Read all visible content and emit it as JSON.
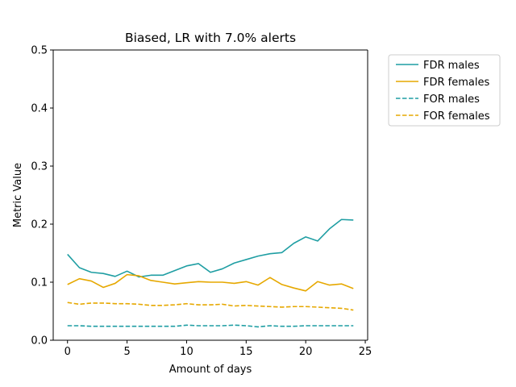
{
  "chart_data": {
    "type": "line",
    "title": "Biased, LR with 7.0% alerts",
    "xlabel": "Amount of days",
    "ylabel": "Metric Value",
    "xlim": [
      -1.2,
      25.2
    ],
    "ylim": [
      0,
      0.5
    ],
    "xticks": [
      0,
      5,
      10,
      15,
      20,
      25
    ],
    "xtick_labels": [
      "0",
      "5",
      "10",
      "15",
      "20",
      "25"
    ],
    "yticks": [
      0,
      0.1,
      0.2,
      0.3,
      0.4,
      0.5
    ],
    "ytick_labels": [
      "0.0",
      "0.1",
      "0.2",
      "0.3",
      "0.4",
      "0.5"
    ],
    "grid": false,
    "legend_position": "outside-top-right",
    "x": [
      0,
      1,
      2,
      3,
      4,
      5,
      6,
      7,
      8,
      9,
      10,
      11,
      12,
      13,
      14,
      15,
      16,
      17,
      18,
      19,
      20,
      21,
      22,
      23,
      24
    ],
    "series": [
      {
        "name": "FDR males",
        "color": "#1f9ea3",
        "dash": "solid",
        "values": [
          0.148,
          0.125,
          0.117,
          0.115,
          0.11,
          0.119,
          0.109,
          0.112,
          0.112,
          0.12,
          0.128,
          0.132,
          0.117,
          0.123,
          0.133,
          0.139,
          0.145,
          0.149,
          0.151,
          0.167,
          0.178,
          0.171,
          0.192,
          0.208,
          0.207
        ]
      },
      {
        "name": "FDR females",
        "color": "#e6a800",
        "dash": "solid",
        "values": [
          0.096,
          0.106,
          0.102,
          0.091,
          0.098,
          0.113,
          0.111,
          0.103,
          0.1,
          0.097,
          0.099,
          0.101,
          0.1,
          0.1,
          0.098,
          0.101,
          0.095,
          0.108,
          0.096,
          0.09,
          0.085,
          0.101,
          0.095,
          0.097,
          0.089
        ]
      },
      {
        "name": "FOR males",
        "color": "#1f9ea3",
        "dash": "dashed",
        "values": [
          0.025,
          0.025,
          0.024,
          0.024,
          0.024,
          0.024,
          0.024,
          0.024,
          0.024,
          0.024,
          0.026,
          0.025,
          0.025,
          0.025,
          0.026,
          0.025,
          0.023,
          0.025,
          0.024,
          0.024,
          0.025,
          0.025,
          0.025,
          0.025,
          0.025
        ]
      },
      {
        "name": "FOR females",
        "color": "#e6a800",
        "dash": "dashed",
        "values": [
          0.065,
          0.062,
          0.064,
          0.064,
          0.063,
          0.063,
          0.062,
          0.06,
          0.06,
          0.061,
          0.063,
          0.061,
          0.061,
          0.062,
          0.059,
          0.06,
          0.059,
          0.058,
          0.057,
          0.058,
          0.058,
          0.057,
          0.056,
          0.055,
          0.052
        ]
      }
    ]
  }
}
